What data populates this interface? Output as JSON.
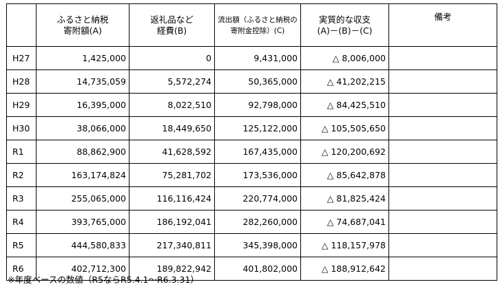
{
  "table": {
    "headers": {
      "col1_line1": "ふるさと納税",
      "col1_line2": "寄附額(A)",
      "col2_line1": "返礼品など",
      "col2_line2": "経費(B)",
      "col3_line1": "流出額（ふるさと納税の",
      "col3_line2": "寄附金控除）(C)",
      "col4_line1": "実質的な収支",
      "col4_line2": "(A)－(B)－(C)",
      "col5": "備考"
    },
    "triangle": "△",
    "rows": [
      {
        "year": "H27",
        "a": "1,425,000",
        "b": "0",
        "c": "9,431,000",
        "net": "8,006,000",
        "note": ""
      },
      {
        "year": "H28",
        "a": "14,735,059",
        "b": "5,572,274",
        "c": "50,365,000",
        "net": "41,202,215",
        "note": ""
      },
      {
        "year": "H29",
        "a": "16,395,000",
        "b": "8,022,510",
        "c": "92,798,000",
        "net": "84,425,510",
        "note": ""
      },
      {
        "year": "H30",
        "a": "38,066,000",
        "b": "18,449,650",
        "c": "125,122,000",
        "net": "105,505,650",
        "note": ""
      },
      {
        "year": "R1",
        "a": "88,862,900",
        "b": "41,628,592",
        "c": "167,435,000",
        "net": "120,200,692",
        "note": ""
      },
      {
        "year": "R2",
        "a": "163,174,824",
        "b": "75,281,702",
        "c": "173,536,000",
        "net": "85,642,878",
        "note": ""
      },
      {
        "year": "R3",
        "a": "255,065,000",
        "b": "116,116,424",
        "c": "220,774,000",
        "net": "81,825,424",
        "note": ""
      },
      {
        "year": "R4",
        "a": "393,765,000",
        "b": "186,192,041",
        "c": "282,260,000",
        "net": "74,687,041",
        "note": ""
      },
      {
        "year": "R5",
        "a": "444,580,833",
        "b": "217,340,811",
        "c": "345,398,000",
        "net": "118,157,978",
        "note": ""
      },
      {
        "year": "R6",
        "a": "402,712,300",
        "b": "189,822,942",
        "c": "401,802,000",
        "net": "188,912,642",
        "note": ""
      }
    ]
  },
  "footnote": "※年度ベースの数値（R5ならR5.4.1～R6.3.31）"
}
